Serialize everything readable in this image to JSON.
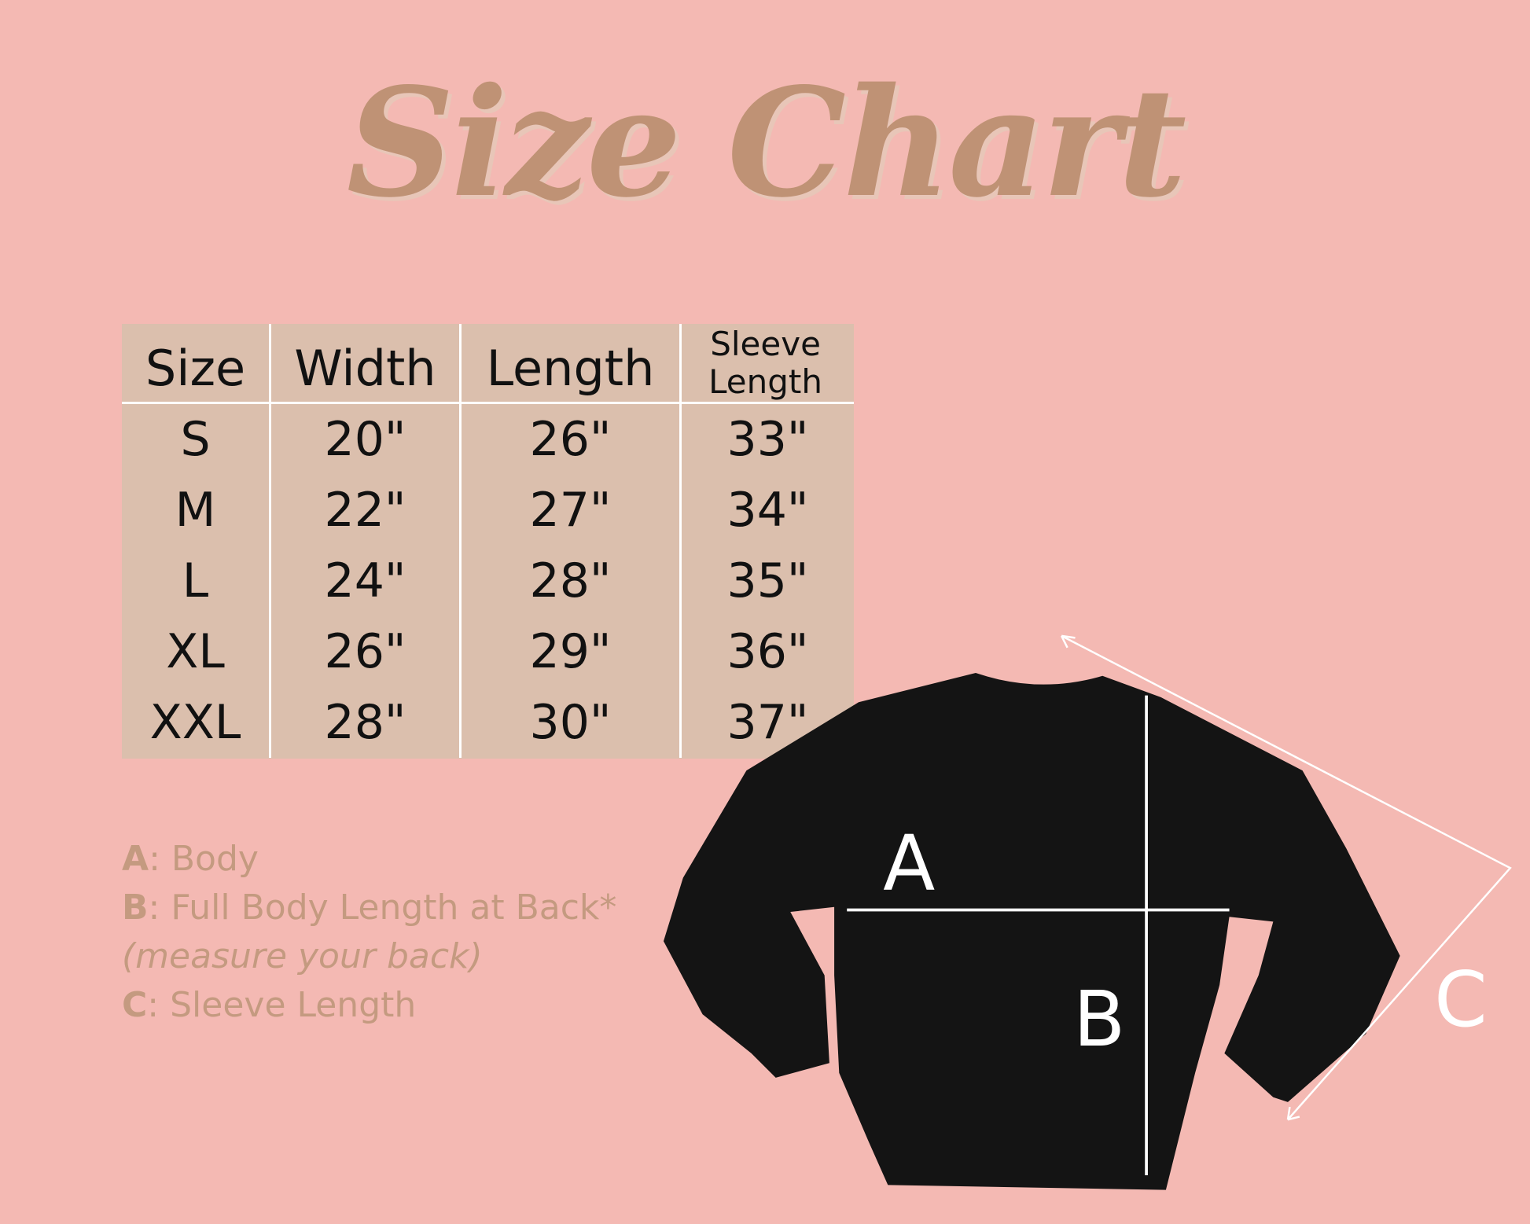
{
  "title": "Size Chart",
  "table": {
    "headers": [
      "Size",
      "Width",
      "Length",
      "Sleeve Length"
    ],
    "rows": [
      [
        "S",
        "20\"",
        "26\"",
        "33\""
      ],
      [
        "M",
        "22\"",
        "27\"",
        "34\""
      ],
      [
        "L",
        "24\"",
        "28\"",
        "35\""
      ],
      [
        "XL",
        "26\"",
        "29\"",
        "36\""
      ],
      [
        "XXL",
        "28\"",
        "30\"",
        "37\""
      ]
    ]
  },
  "legend": [
    {
      "key": "A",
      "text": ": Body"
    },
    {
      "key": "B",
      "text": ": Full Body Length at Back*"
    },
    {
      "note": "(measure your back)"
    },
    {
      "key": "C",
      "text": ": Sleeve Length"
    }
  ],
  "diagram": {
    "label_a": "A",
    "label_b": "B",
    "label_c": "C"
  },
  "colors": {
    "background": "#f4b9b3",
    "table": "#dbbfad",
    "accent": "#bf9275",
    "garment": "#141414"
  }
}
